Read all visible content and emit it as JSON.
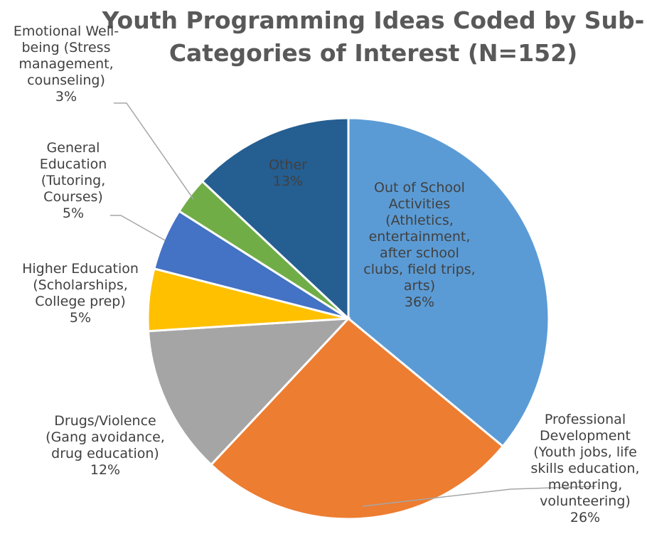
{
  "chart_data": {
    "type": "pie",
    "title": [
      "Youth Programming Ideas Coded by Sub-",
      "Categories of Interest (N=152)"
    ],
    "slices": [
      {
        "label": [
          "Out of School",
          "Activities",
          "(Athletics,",
          "entertainment,",
          "after school",
          "clubs, field trips,",
          "arts)"
        ],
        "value": 36,
        "pct_text": "36%",
        "color": "#5b9bd5",
        "label_pos": "inside"
      },
      {
        "label": [
          "Professional",
          "Development",
          "(Youth jobs, life",
          "skills education,",
          "mentoring,",
          "volunteering)"
        ],
        "value": 26,
        "pct_text": "26%",
        "color": "#ed7d31",
        "label_pos": "outside"
      },
      {
        "label": [
          "Drugs/Violence",
          "(Gang avoidance,",
          "drug education)"
        ],
        "value": 12,
        "pct_text": "12%",
        "color": "#a5a5a5",
        "label_pos": "outside"
      },
      {
        "label": [
          "Higher Education",
          "(Scholarships,",
          "College prep)"
        ],
        "value": 5,
        "pct_text": "5%",
        "color": "#ffc000",
        "label_pos": "outside"
      },
      {
        "label": [
          "General",
          "Education",
          "(Tutoring,",
          "Courses)"
        ],
        "value": 5,
        "pct_text": "5%",
        "color": "#4472c4",
        "label_pos": "outside"
      },
      {
        "label": [
          "Emotional Well-",
          "being (Stress",
          "management,",
          "counseling)"
        ],
        "value": 3,
        "pct_text": "3%",
        "color": "#70ad47",
        "label_pos": "outside"
      },
      {
        "label": [
          "Other"
        ],
        "value": 13,
        "pct_text": "13%",
        "color": "#255e91",
        "label_pos": "inside"
      }
    ],
    "start_angle_deg": 0,
    "direction": "clockwise"
  }
}
